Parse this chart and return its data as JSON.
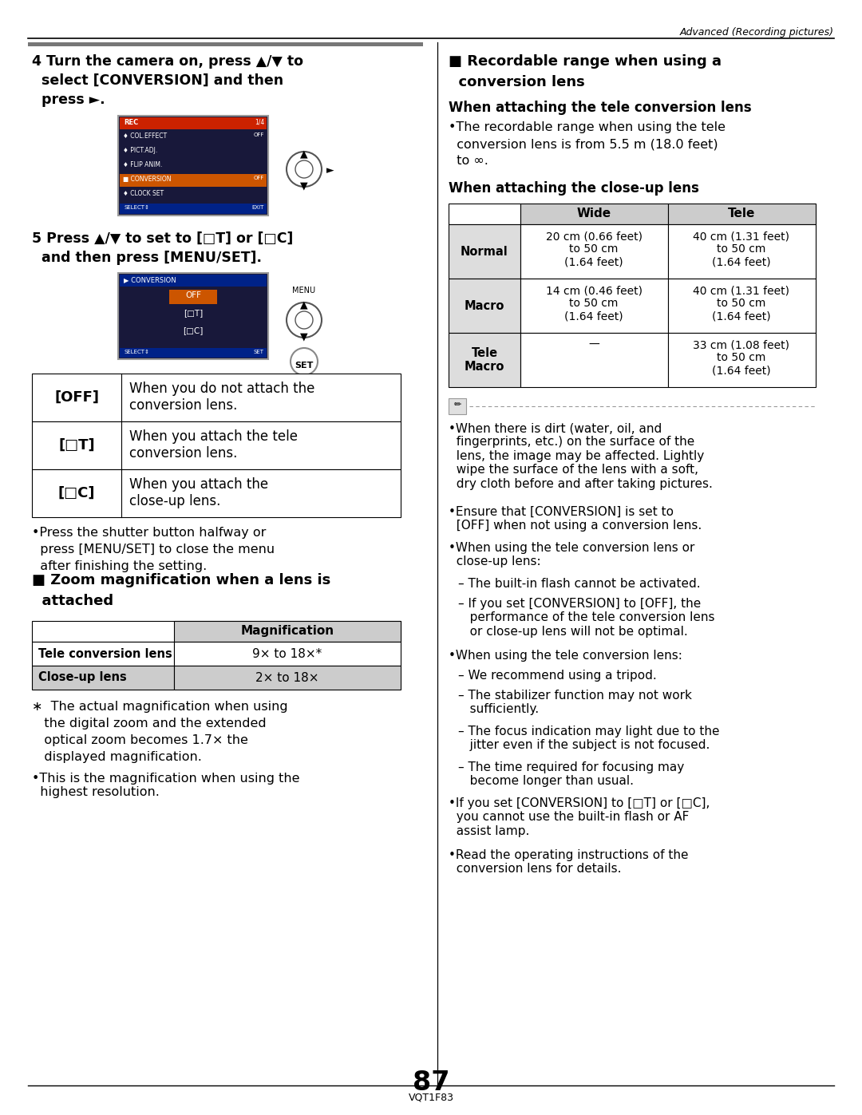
{
  "bg_color": "#ffffff",
  "page_number": "87",
  "page_code": "VQT1F83",
  "header_text": "Advanced (Recording pictures)",
  "step4_text": [
    "4 Turn the camera on, press ▲/▼ to",
    "  select [CONVERSION] and then",
    "  press ►."
  ],
  "step5_text": [
    "5 Press ▲/▼ to set to [□T] or [□C]",
    "  and then press [MENU/SET]."
  ],
  "table1": [
    {
      "key": "[OFF]",
      "val": "When you do not attach the\nconversion lens."
    },
    {
      "key": "[□T]",
      "val": "When you attach the tele\nconversion lens."
    },
    {
      "key": "[□C]",
      "val": "When you attach the\nclose-up lens."
    }
  ],
  "press_shutter_text": [
    "•Press the shutter button halfway or",
    "  press [MENU/SET] to close the menu",
    "  after finishing the setting."
  ],
  "zoom_title": [
    "■ Zoom magnification when a lens is",
    "  attached"
  ],
  "zoom_table_hdr": "Magnification",
  "zoom_rows": [
    {
      "label": "Tele conversion lens",
      "val": "9× to 18×*"
    },
    {
      "label": "Close-up lens",
      "val": "2× to 18×"
    }
  ],
  "asterisk_lines": [
    "∗  The actual magnification when using",
    "   the digital zoom and the extended",
    "   optical zoom becomes 1.7× the",
    "   displayed magnification."
  ],
  "highest_res": "•This is the magnification when using the\n  highest resolution.",
  "right_title": [
    "■ Recordable range when using a",
    "  conversion lens"
  ],
  "tele_subtitle": "When attaching the tele conversion lens",
  "tele_bullet": [
    "•The recordable range when using the tele",
    "  conversion lens is from 5.5 m (18.0 feet)",
    "  to ∞."
  ],
  "closeup_subtitle": "When attaching the close-up lens",
  "closeup_hdr": [
    "Wide",
    "Tele"
  ],
  "closeup_rows": [
    {
      "label": "Normal",
      "wide": "20 cm (0.66 feet)\nto 50 cm\n(1.64 feet)",
      "tele": "40 cm (1.31 feet)\nto 50 cm\n(1.64 feet)"
    },
    {
      "label": "Macro",
      "wide": "14 cm (0.46 feet)\nto 50 cm\n(1.64 feet)",
      "tele": "40 cm (1.31 feet)\nto 50 cm\n(1.64 feet)"
    },
    {
      "label": "Tele\nMacro",
      "wide": "—",
      "tele": "33 cm (1.08 feet)\nto 50 cm\n(1.64 feet)"
    }
  ],
  "right_bullets": [
    {
      "text": "•When there is dirt (water, oil, and\n  fingerprints, etc.) on the surface of the\n  lens, the image may be affected. Lightly\n  wipe the surface of the lens with a soft,\n  dry cloth before and after taking pictures.",
      "indent": 0
    },
    {
      "text": "•Ensure that [CONVERSION] is set to\n  [OFF] when not using a conversion lens.",
      "indent": 0
    },
    {
      "text": "•When using the tele conversion lens or\n  close-up lens:",
      "indent": 0
    },
    {
      "text": "– The built-in flash cannot be activated.",
      "indent": 12
    },
    {
      "text": "– If you set [CONVERSION] to [OFF], the\n   performance of the tele conversion lens\n   or close-up lens will not be optimal.",
      "indent": 12
    },
    {
      "text": "•When using the tele conversion lens:",
      "indent": 0
    },
    {
      "text": "– We recommend using a tripod.",
      "indent": 12
    },
    {
      "text": "– The stabilizer function may not work\n   sufficiently.",
      "indent": 12
    },
    {
      "text": "– The focus indication may light due to the\n   jitter even if the subject is not focused.",
      "indent": 12
    },
    {
      "text": "– The time required for focusing may\n   become longer than usual.",
      "indent": 12
    },
    {
      "text": "•If you set [CONVERSION] to [□T] or [□C],\n  you cannot use the built-in flash or AF\n  assist lamp.",
      "indent": 0
    },
    {
      "text": "•Read the operating instructions of the\n  conversion lens for details.",
      "indent": 0
    }
  ],
  "screen1_menu": [
    {
      "label": "♦ COL.EFFECT",
      "val": "OFF",
      "highlight": false
    },
    {
      "label": "♦ PICT.ADJ.",
      "val": "",
      "highlight": false
    },
    {
      "label": "♦ FLIP ANIM.",
      "val": "",
      "highlight": false
    },
    {
      "label": "■ CONVERSION",
      "val": "OFF",
      "highlight": true
    },
    {
      "label": "♦ CLOCK SET",
      "val": "",
      "highlight": false
    }
  ]
}
